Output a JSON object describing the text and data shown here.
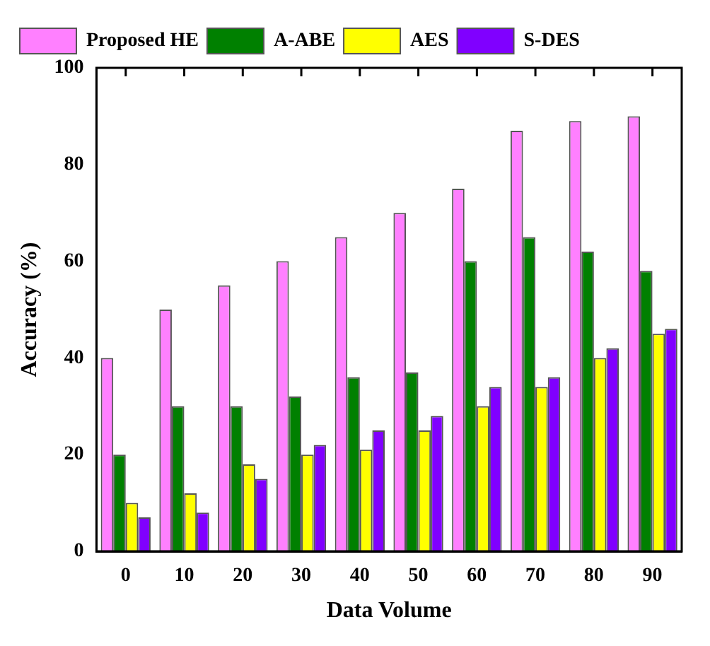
{
  "chart_data": {
    "type": "bar",
    "xlabel": "Data Volume",
    "ylabel": "Accuracy (%)",
    "categories": [
      "0",
      "10",
      "20",
      "30",
      "40",
      "50",
      "60",
      "70",
      "80",
      "90"
    ],
    "ylim": [
      0,
      100
    ],
    "yticks": [
      0,
      20,
      40,
      60,
      80,
      100
    ],
    "grid": false,
    "legend": "top left",
    "series": [
      {
        "name": "Proposed HE",
        "color": "#ff80ff",
        "values": [
          40,
          50,
          55,
          60,
          65,
          70,
          75,
          87,
          89,
          90
        ]
      },
      {
        "name": "A-ABE",
        "color": "#008000",
        "values": [
          20,
          30,
          30,
          32,
          36,
          37,
          60,
          65,
          62,
          58
        ]
      },
      {
        "name": "AES",
        "color": "#ffff00",
        "values": [
          10,
          12,
          18,
          20,
          21,
          25,
          30,
          34,
          40,
          45
        ]
      },
      {
        "name": "S-DES",
        "color": "#8000ff",
        "values": [
          7,
          8,
          15,
          22,
          25,
          28,
          34,
          36,
          42,
          46
        ]
      }
    ]
  }
}
